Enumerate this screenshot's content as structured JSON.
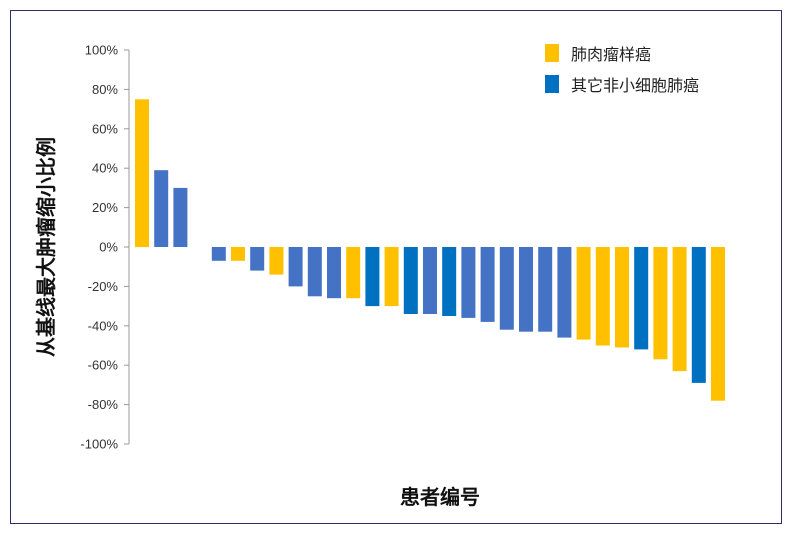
{
  "chart_data": {
    "type": "bar",
    "xlabel": "患者编号",
    "ylabel": "从基线最大肿瘤缩小比例",
    "ylim": [
      -100,
      100
    ],
    "yticks": [
      "100%",
      "80%",
      "60%",
      "40%",
      "20%",
      "0%",
      "-20%",
      "-40%",
      "-60%",
      "-80%",
      "-100%"
    ],
    "ytick_values": [
      100,
      80,
      60,
      40,
      20,
      0,
      -20,
      -40,
      -60,
      -80,
      -100
    ],
    "grid": false,
    "legend_position": "top-right",
    "legend": [
      {
        "label": "肺肉瘤样癌",
        "color": "#FFC000"
      },
      {
        "label": "其它非小细胞肺癌",
        "color": "#0070C0"
      }
    ],
    "colors": {
      "sarcomatoid": "#FFC000",
      "other_nsclc": "#0070C0",
      "unlabeled": "#4472C4"
    },
    "bars": [
      {
        "value": 75,
        "group": "sarcomatoid"
      },
      {
        "value": 39,
        "group": "unlabeled"
      },
      {
        "value": 30,
        "group": "unlabeled"
      },
      {
        "value": null,
        "group": "none"
      },
      {
        "value": -7,
        "group": "unlabeled"
      },
      {
        "value": -7,
        "group": "sarcomatoid"
      },
      {
        "value": -12,
        "group": "unlabeled"
      },
      {
        "value": -14,
        "group": "sarcomatoid"
      },
      {
        "value": -20,
        "group": "unlabeled"
      },
      {
        "value": -25,
        "group": "unlabeled"
      },
      {
        "value": -26,
        "group": "unlabeled"
      },
      {
        "value": -26,
        "group": "sarcomatoid"
      },
      {
        "value": -30,
        "group": "other_nsclc"
      },
      {
        "value": -30,
        "group": "sarcomatoid"
      },
      {
        "value": -34,
        "group": "other_nsclc"
      },
      {
        "value": -34,
        "group": "unlabeled"
      },
      {
        "value": -35,
        "group": "other_nsclc"
      },
      {
        "value": -36,
        "group": "unlabeled"
      },
      {
        "value": -38,
        "group": "unlabeled"
      },
      {
        "value": -42,
        "group": "unlabeled"
      },
      {
        "value": -43,
        "group": "unlabeled"
      },
      {
        "value": -43,
        "group": "unlabeled"
      },
      {
        "value": -46,
        "group": "unlabeled"
      },
      {
        "value": -47,
        "group": "sarcomatoid"
      },
      {
        "value": -50,
        "group": "sarcomatoid"
      },
      {
        "value": -51,
        "group": "sarcomatoid"
      },
      {
        "value": -52,
        "group": "other_nsclc"
      },
      {
        "value": -57,
        "group": "sarcomatoid"
      },
      {
        "value": -63,
        "group": "sarcomatoid"
      },
      {
        "value": -69,
        "group": "other_nsclc"
      },
      {
        "value": -78,
        "group": "sarcomatoid"
      }
    ]
  }
}
